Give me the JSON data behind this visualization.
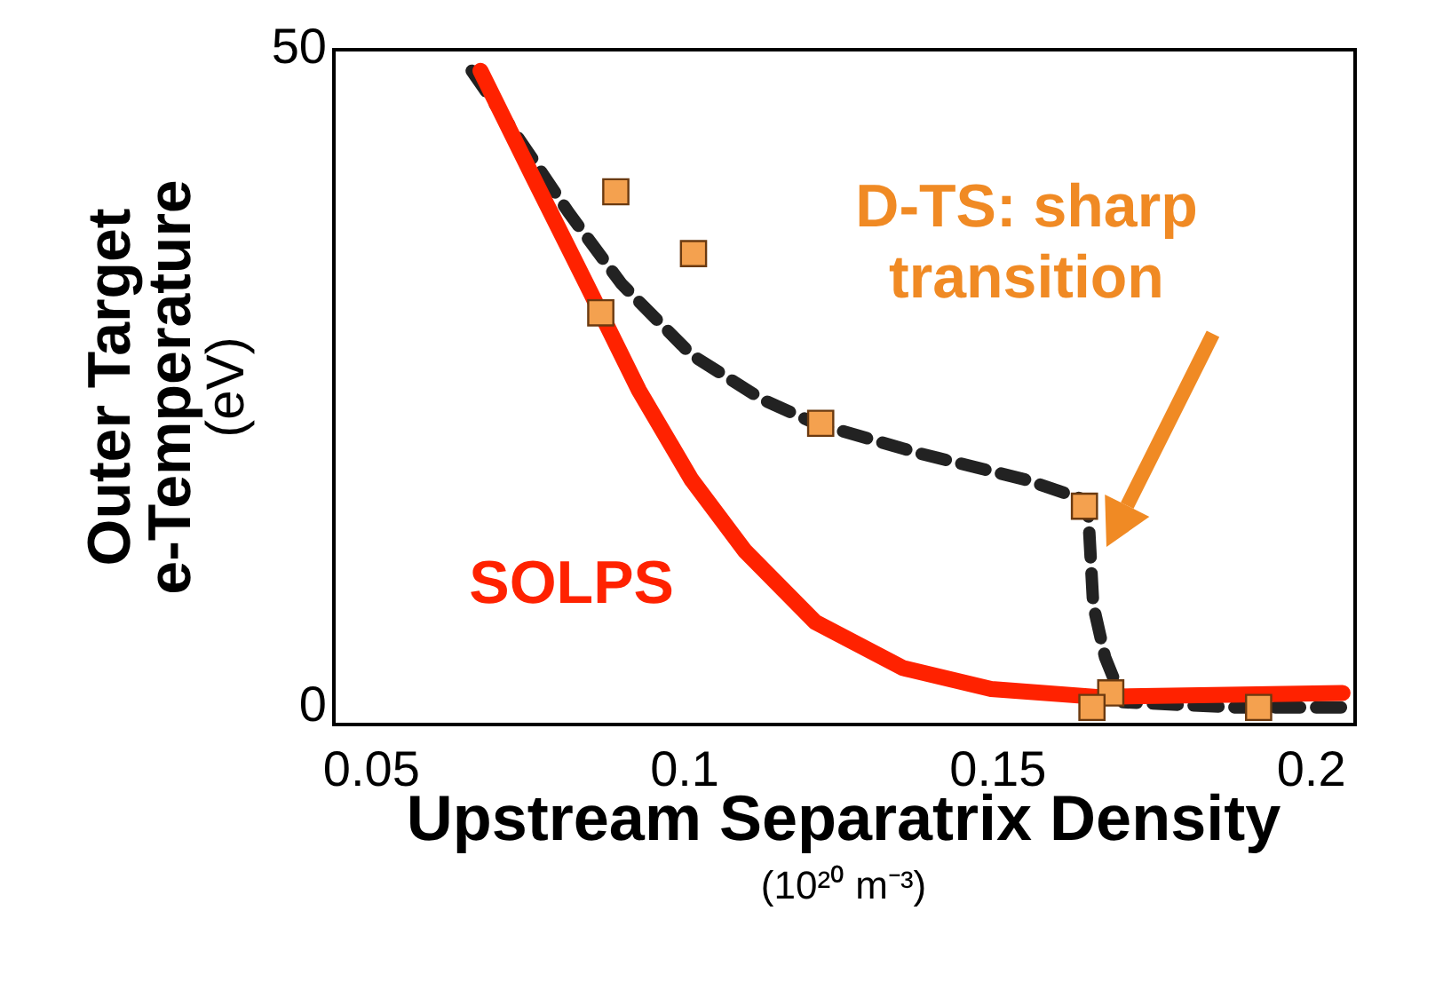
{
  "chart_data": {
    "type": "line",
    "xlabel": "Upstream Separatrix Density\n(10²⁰ m⁻³)",
    "ylabel": "Outer Target\ne-Temperature\n(eV)",
    "xlim": [
      0.044,
      0.207
    ],
    "ylim": [
      -1.3,
      50
    ],
    "xticks": [
      0.05,
      0.1,
      0.15,
      0.2
    ],
    "yticks": [
      0,
      50
    ],
    "grid": false,
    "legend": false,
    "series": [
      {
        "name": "SOLPS",
        "color": "#ff2200",
        "line_style": "solid",
        "marker": "none",
        "x": [
          0.0674,
          0.0758,
          0.0843,
          0.0927,
          0.1011,
          0.1096,
          0.1208,
          0.1348,
          0.1489,
          0.1657,
          0.205
        ],
        "values": [
          48.4,
          40.3,
          32.2,
          24.1,
          17.3,
          11.9,
          6.5,
          3.0,
          1.4,
          0.8,
          1.1
        ]
      },
      {
        "color": "#222222",
        "line_style": "dashed",
        "marker": "none",
        "x": [
          0.066,
          0.073,
          0.0815,
          0.0899,
          0.1011,
          0.1124,
          0.1208,
          0.1376,
          0.1545,
          0.1643,
          0.1652,
          0.1671,
          0.17,
          0.188,
          0.205
        ],
        "values": [
          48.4,
          43.6,
          37.6,
          32.2,
          26.8,
          23.4,
          21.6,
          19.3,
          17.3,
          15.7,
          7.8,
          3.8,
          0.4,
          0,
          0
        ]
      },
      {
        "type": "scatter",
        "color": "#f4a14f",
        "marker": "square",
        "x": [
          0.0866,
          0.089,
          0.1014,
          0.1217,
          0.1638,
          0.168,
          0.165,
          0.1916
        ],
        "values": [
          30.0,
          39.2,
          34.5,
          21.6,
          15.3,
          1.1,
          0,
          0
        ]
      }
    ],
    "annotations": [
      "D-TS: sharp transition"
    ]
  }
}
